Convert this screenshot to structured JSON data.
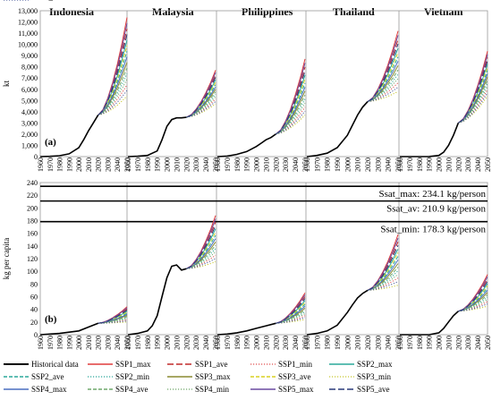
{
  "chart_data": [
    {
      "type": "line",
      "panel_label": "(a)",
      "ylabel": "kt",
      "ylim": [
        0,
        13000
      ],
      "yticks": [
        "0",
        "1,000",
        "2,000",
        "3,000",
        "4,000",
        "5,000",
        "6,000",
        "7,000",
        "8,000",
        "9,000",
        "10,000",
        "11,000",
        "12,000",
        "13,000"
      ],
      "xlim": [
        1960,
        2050
      ],
      "xticks": [
        1960,
        1970,
        1980,
        1990,
        2000,
        2010,
        2020,
        2030,
        2040,
        2050
      ],
      "countries": [
        "Indonesia",
        "Malaysia",
        "Philippines",
        "Thailand",
        "Vietnam"
      ],
      "historical": {
        "Indonesia": {
          "x": [
            1960,
            1970,
            1980,
            1990,
            2000,
            2005,
            2010,
            2015,
            2020
          ],
          "y": [
            0,
            20,
            80,
            250,
            800,
            1500,
            2300,
            3000,
            3700
          ]
        },
        "Malaysia": {
          "x": [
            1960,
            1970,
            1980,
            1990,
            1995,
            2000,
            2005,
            2010,
            2015,
            2020
          ],
          "y": [
            0,
            30,
            100,
            500,
            1500,
            2700,
            3300,
            3450,
            3450,
            3500
          ]
        },
        "Philippines": {
          "x": [
            1960,
            1970,
            1980,
            1990,
            2000,
            2005,
            2010,
            2015,
            2020
          ],
          "y": [
            0,
            50,
            200,
            450,
            900,
            1200,
            1500,
            1700,
            2000
          ]
        },
        "Thailand": {
          "x": [
            1960,
            1970,
            1980,
            1990,
            2000,
            2005,
            2010,
            2015,
            2020
          ],
          "y": [
            0,
            100,
            300,
            800,
            1900,
            2800,
            3700,
            4400,
            4900
          ]
        },
        "Vietnam": {
          "x": [
            1960,
            1970,
            1980,
            1990,
            2000,
            2005,
            2010,
            2015,
            2020
          ],
          "y": [
            0,
            0,
            0,
            10,
            100,
            400,
            1000,
            1900,
            3000
          ]
        }
      },
      "projection_2050": {
        "Indonesia": {
          "x0": 2020,
          "y0": 3700,
          "min": 5400,
          "max": 12400
        },
        "Malaysia": {
          "x0": 2020,
          "y0": 3500,
          "min": 4700,
          "max": 7700
        },
        "Philippines": {
          "x0": 2020,
          "y0": 2000,
          "min": 3700,
          "max": 8700
        },
        "Thailand": {
          "x0": 2020,
          "y0": 4900,
          "min": 5800,
          "max": 11200
        },
        "Vietnam": {
          "x0": 2020,
          "y0": 3000,
          "min": 5400,
          "max": 9400
        }
      }
    },
    {
      "type": "line",
      "panel_label": "(b)",
      "ylabel": "kg per capita",
      "ylim": [
        0,
        240
      ],
      "yticks": [
        "0",
        "20",
        "40",
        "60",
        "80",
        "100",
        "120",
        "140",
        "160",
        "180",
        "200",
        "220",
        "240"
      ],
      "xlim": [
        1960,
        2050
      ],
      "xticks": [
        1960,
        1970,
        1980,
        1990,
        2000,
        2010,
        2020,
        2030,
        2040,
        2050
      ],
      "saturation_lines": [
        {
          "label": "Ssat_max: 234.1 kg/person",
          "value": 234.1
        },
        {
          "label": "Ssat_av: 210.9 kg/person",
          "value": 210.9
        },
        {
          "label": "Ssat_min: 178.3 kg/person",
          "value": 178.3
        }
      ],
      "historical": {
        "Indonesia": {
          "x": [
            1960,
            1970,
            1980,
            1990,
            2000,
            2010,
            2020
          ],
          "y": [
            0,
            1,
            2,
            4,
            6,
            12,
            18
          ]
        },
        "Malaysia": {
          "x": [
            1960,
            1970,
            1980,
            1985,
            1990,
            1995,
            2000,
            2005,
            2010,
            2015,
            2020
          ],
          "y": [
            0,
            2,
            6,
            14,
            30,
            60,
            90,
            108,
            110,
            102,
            104
          ]
        },
        "Philippines": {
          "x": [
            1960,
            1970,
            1980,
            1990,
            2000,
            2010,
            2020
          ],
          "y": [
            0,
            1,
            3,
            6,
            10,
            14,
            18
          ]
        },
        "Thailand": {
          "x": [
            1960,
            1970,
            1980,
            1990,
            2000,
            2005,
            2010,
            2015,
            2020
          ],
          "y": [
            0,
            2,
            6,
            15,
            35,
            47,
            58,
            65,
            70
          ]
        },
        "Vietnam": {
          "x": [
            1960,
            1970,
            1980,
            1990,
            2000,
            2005,
            2010,
            2015,
            2020
          ],
          "y": [
            0,
            0,
            0,
            0,
            3,
            10,
            20,
            30,
            37
          ]
        }
      },
      "projection_2050": {
        "Indonesia": {
          "x0": 2020,
          "y0": 18,
          "min": 20,
          "max": 44
        },
        "Malaysia": {
          "x0": 2020,
          "y0": 104,
          "min": 115,
          "max": 188
        },
        "Philippines": {
          "x0": 2020,
          "y0": 18,
          "min": 24,
          "max": 66
        },
        "Thailand": {
          "x0": 2020,
          "y0": 70,
          "min": 78,
          "max": 158
        },
        "Vietnam": {
          "x0": 2020,
          "y0": 37,
          "min": 45,
          "max": 95
        }
      }
    }
  ],
  "legend": [
    {
      "label": "Historical data",
      "color": "#000000",
      "dash": "solid",
      "width": 2
    },
    {
      "label": "SSP1_max",
      "color": "#e03c3c",
      "dash": "solid",
      "width": 1.6
    },
    {
      "label": "SSP1_ave",
      "color": "#c02828",
      "dash": "longdash",
      "width": 1.4
    },
    {
      "label": "SSP1_min",
      "color": "#e05050",
      "dash": "dot",
      "width": 1.3
    },
    {
      "label": "SSP2_max",
      "color": "#2aa89a",
      "dash": "solid",
      "width": 1.6
    },
    {
      "label": "SSP2_ave",
      "color": "#2aa89a",
      "dash": "dash",
      "width": 1.4
    },
    {
      "label": "SSP2_min",
      "color": "#2aa89a",
      "dash": "dot",
      "width": 1.3
    },
    {
      "label": "SSP3_max",
      "color": "#8a8a30",
      "dash": "solid",
      "width": 1.6
    },
    {
      "label": "SSP3_ave",
      "color": "#d8d020",
      "dash": "dash",
      "width": 1.4
    },
    {
      "label": "SSP3_min",
      "color": "#c8c830",
      "dash": "dot",
      "width": 1.3
    },
    {
      "label": "SSP4_max",
      "color": "#4a6fc0",
      "dash": "solid",
      "width": 1.6
    },
    {
      "label": "SSP4_ave",
      "color": "#6fa86a",
      "dash": "dash",
      "width": 1.4
    },
    {
      "label": "SSP4_min",
      "color": "#6fa86a",
      "dash": "dot",
      "width": 1.3
    },
    {
      "label": "SSP5_max",
      "color": "#6a4aa0",
      "dash": "solid",
      "width": 1.6
    },
    {
      "label": "SSP5_ave",
      "color": "#2a3a7a",
      "dash": "longdash",
      "width": 1.4
    },
    {
      "label": "SSP5_min",
      "color": "#4a5a9a",
      "dash": "dot",
      "width": 1.3
    }
  ]
}
